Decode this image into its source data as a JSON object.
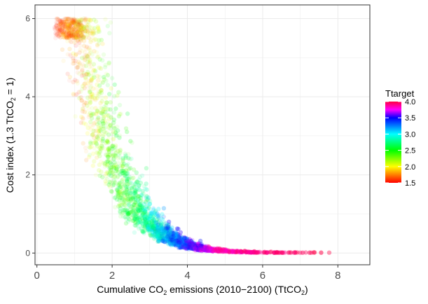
{
  "chart_data": {
    "type": "scatter",
    "title": "",
    "xlabel_parts": [
      "Cumulative CO",
      "2",
      " emissions (2010−2100) (TtCO",
      "2",
      ")"
    ],
    "ylabel_parts": [
      "Cost index (1.3 TtCO",
      "2",
      " = 1)"
    ],
    "xlim": [
      -0.05,
      8.85
    ],
    "ylim": [
      -0.3,
      6.35
    ],
    "x_ticks": [
      0,
      2,
      4,
      6,
      8
    ],
    "x_tick_labels": [
      "0",
      "2",
      "4",
      "6",
      "8"
    ],
    "y_ticks": [
      0,
      2,
      4,
      6
    ],
    "y_tick_labels": [
      "0",
      "2",
      "4",
      "6"
    ],
    "grid": true,
    "legend": {
      "title": "Ttarget",
      "position": "right",
      "ticks": [
        4.0,
        3.5,
        3.0,
        2.5,
        2.0,
        1.5
      ],
      "tick_labels": [
        "4.0",
        "3.5",
        "3.0",
        "2.5",
        "2.0",
        "1.5"
      ],
      "range": [
        1.5,
        4.0
      ]
    },
    "color_scale": [
      {
        "value": 1.5,
        "color": "#ff0000"
      },
      {
        "value": 2.0,
        "color": "#ffff00"
      },
      {
        "value": 2.5,
        "color": "#00ff00"
      },
      {
        "value": 3.0,
        "color": "#00ffff"
      },
      {
        "value": 3.5,
        "color": "#0000ff"
      },
      {
        "value": 3.75,
        "color": "#ff00ff"
      },
      {
        "value": 4.0,
        "color": "#ff0040"
      }
    ],
    "series_density": [
      {
        "Ttarget": 1.5,
        "x_range": [
          0.45,
          1.1
        ],
        "y_peak": 6.0,
        "alpha": 0.05
      },
      {
        "Ttarget": 1.75,
        "x_range": [
          0.55,
          1.4
        ],
        "y_peak": 4.5,
        "alpha": 0.07
      },
      {
        "Ttarget": 2.0,
        "x_range": [
          0.8,
          1.9
        ],
        "y_peak": 3.0,
        "alpha": 0.08
      },
      {
        "Ttarget": 2.25,
        "x_range": [
          1.2,
          2.5
        ],
        "y_peak": 1.8,
        "alpha": 0.09
      },
      {
        "Ttarget": 2.5,
        "x_range": [
          1.7,
          3.0
        ],
        "y_peak": 1.0,
        "alpha": 0.1
      },
      {
        "Ttarget": 2.75,
        "x_range": [
          2.3,
          3.4
        ],
        "y_peak": 0.5,
        "alpha": 0.12
      },
      {
        "Ttarget": 3.0,
        "x_range": [
          2.8,
          3.8
        ],
        "y_peak": 0.3,
        "alpha": 0.14
      },
      {
        "Ttarget": 3.25,
        "x_range": [
          3.2,
          4.1
        ],
        "y_peak": 0.15,
        "alpha": 0.16
      },
      {
        "Ttarget": 3.5,
        "x_range": [
          3.5,
          4.4
        ],
        "y_peak": 0.1,
        "alpha": 0.18
      },
      {
        "Ttarget": 3.75,
        "x_range": [
          4.0,
          4.8
        ],
        "y_peak": 0.05,
        "alpha": 0.2
      },
      {
        "Ttarget": 4.0,
        "x_range": [
          4.7,
          8.05
        ],
        "y_peak": 0.01,
        "alpha": 0.22
      }
    ]
  }
}
